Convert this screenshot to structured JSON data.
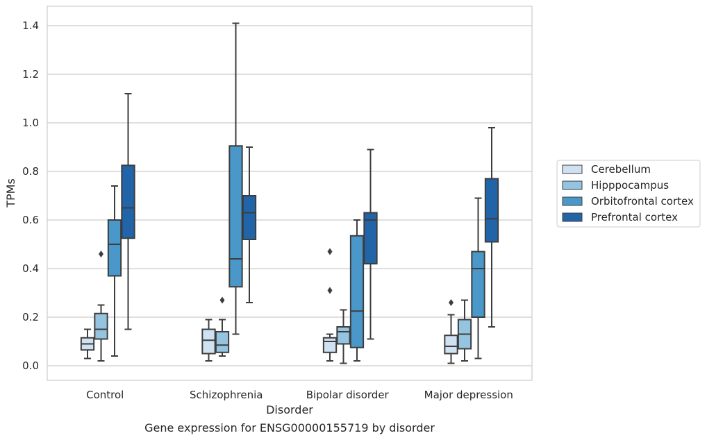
{
  "chart_data": {
    "type": "box",
    "title": "Gene expression for ENSG00000155719 by disorder",
    "xlabel": "Disorder",
    "ylabel": "TPMs",
    "ylim": [
      -0.06,
      1.48
    ],
    "yticks": [
      "0.0",
      "0.2",
      "0.4",
      "0.6",
      "0.8",
      "1.0",
      "1.2",
      "1.4"
    ],
    "grid": true,
    "legend_position": "right",
    "categories": [
      "Control",
      "Schizophrenia",
      "Bipolar disorder",
      "Major depression"
    ],
    "series": [
      {
        "name": "Cerebellum",
        "color": "#d0e1f2",
        "boxes": [
          {
            "whisker_low": 0.03,
            "q1": 0.065,
            "median": 0.09,
            "q3": 0.115,
            "whisker_high": 0.15,
            "outliers": []
          },
          {
            "whisker_low": 0.02,
            "q1": 0.05,
            "median": 0.105,
            "q3": 0.15,
            "whisker_high": 0.19,
            "outliers": []
          },
          {
            "whisker_low": 0.02,
            "q1": 0.055,
            "median": 0.1,
            "q3": 0.115,
            "whisker_high": 0.13,
            "outliers": [
              0.31,
              0.47
            ]
          },
          {
            "whisker_low": 0.01,
            "q1": 0.05,
            "median": 0.08,
            "q3": 0.125,
            "whisker_high": 0.21,
            "outliers": [
              0.26
            ]
          }
        ]
      },
      {
        "name": "Hipppocampus",
        "color": "#94c4df",
        "boxes": [
          {
            "whisker_low": 0.02,
            "q1": 0.11,
            "median": 0.15,
            "q3": 0.215,
            "whisker_high": 0.25,
            "outliers": [
              0.46
            ]
          },
          {
            "whisker_low": 0.04,
            "q1": 0.055,
            "median": 0.085,
            "q3": 0.14,
            "whisker_high": 0.19,
            "outliers": [
              0.27
            ]
          },
          {
            "whisker_low": 0.01,
            "q1": 0.09,
            "median": 0.14,
            "q3": 0.16,
            "whisker_high": 0.23,
            "outliers": []
          },
          {
            "whisker_low": 0.02,
            "q1": 0.07,
            "median": 0.13,
            "q3": 0.19,
            "whisker_high": 0.27,
            "outliers": []
          }
        ]
      },
      {
        "name": "Orbitofrontal cortex",
        "color": "#4a98c9",
        "boxes": [
          {
            "whisker_low": 0.04,
            "q1": 0.37,
            "median": 0.5,
            "q3": 0.6,
            "whisker_high": 0.74,
            "outliers": []
          },
          {
            "whisker_low": 0.13,
            "q1": 0.325,
            "median": 0.44,
            "q3": 0.905,
            "whisker_high": 1.41,
            "outliers": []
          },
          {
            "whisker_low": 0.02,
            "q1": 0.075,
            "median": 0.225,
            "q3": 0.535,
            "whisker_high": 0.6,
            "outliers": []
          },
          {
            "whisker_low": 0.03,
            "q1": 0.2,
            "median": 0.4,
            "q3": 0.47,
            "whisker_high": 0.69,
            "outliers": []
          }
        ]
      },
      {
        "name": "Prefrontal cortex",
        "color": "#2264a8",
        "boxes": [
          {
            "whisker_low": 0.15,
            "q1": 0.525,
            "median": 0.65,
            "q3": 0.825,
            "whisker_high": 1.12,
            "outliers": []
          },
          {
            "whisker_low": 0.26,
            "q1": 0.52,
            "median": 0.63,
            "q3": 0.7,
            "whisker_high": 0.9,
            "outliers": []
          },
          {
            "whisker_low": 0.11,
            "q1": 0.42,
            "median": 0.6,
            "q3": 0.63,
            "whisker_high": 0.89,
            "outliers": []
          },
          {
            "whisker_low": 0.16,
            "q1": 0.51,
            "median": 0.605,
            "q3": 0.77,
            "whisker_high": 0.98,
            "outliers": []
          }
        ]
      }
    ]
  }
}
